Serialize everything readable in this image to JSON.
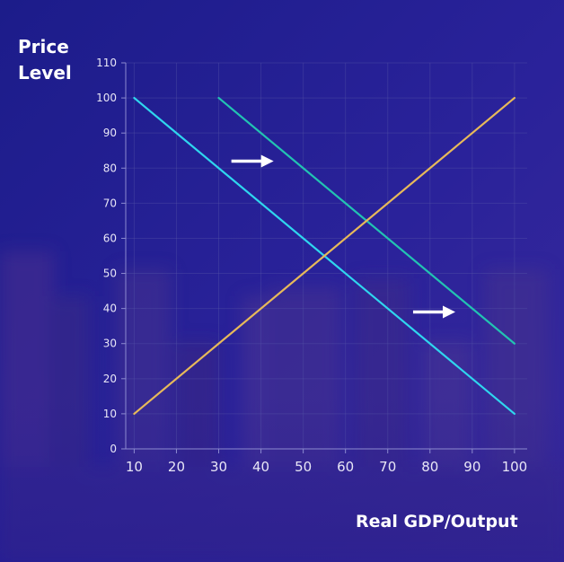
{
  "chart_data": {
    "type": "line",
    "xlabel": "Real GDP/Output",
    "ylabel_line1": "Price",
    "ylabel_line2": "Level",
    "xlim": [
      8,
      103
    ],
    "ylim": [
      0,
      110
    ],
    "x_ticks": [
      10,
      20,
      30,
      40,
      50,
      60,
      70,
      80,
      90,
      100
    ],
    "y_ticks": [
      0,
      10,
      20,
      30,
      40,
      50,
      60,
      70,
      80,
      90,
      100,
      110
    ],
    "grid": true,
    "series": [
      {
        "color": "#2fd6ee",
        "points": [
          [
            10,
            100
          ],
          [
            100,
            10
          ]
        ]
      },
      {
        "color": "#22c3b2",
        "points": [
          [
            30,
            100
          ],
          [
            100,
            30
          ]
        ]
      },
      {
        "color": "#e7b95a",
        "points": [
          [
            10,
            10
          ],
          [
            100,
            100
          ]
        ]
      }
    ],
    "annotations": [
      {
        "type": "arrow",
        "from": [
          33,
          82
        ],
        "to": [
          43,
          82
        ],
        "color": "#ffffff"
      },
      {
        "type": "arrow",
        "from": [
          76,
          39
        ],
        "to": [
          86,
          39
        ],
        "color": "#ffffff"
      }
    ]
  }
}
